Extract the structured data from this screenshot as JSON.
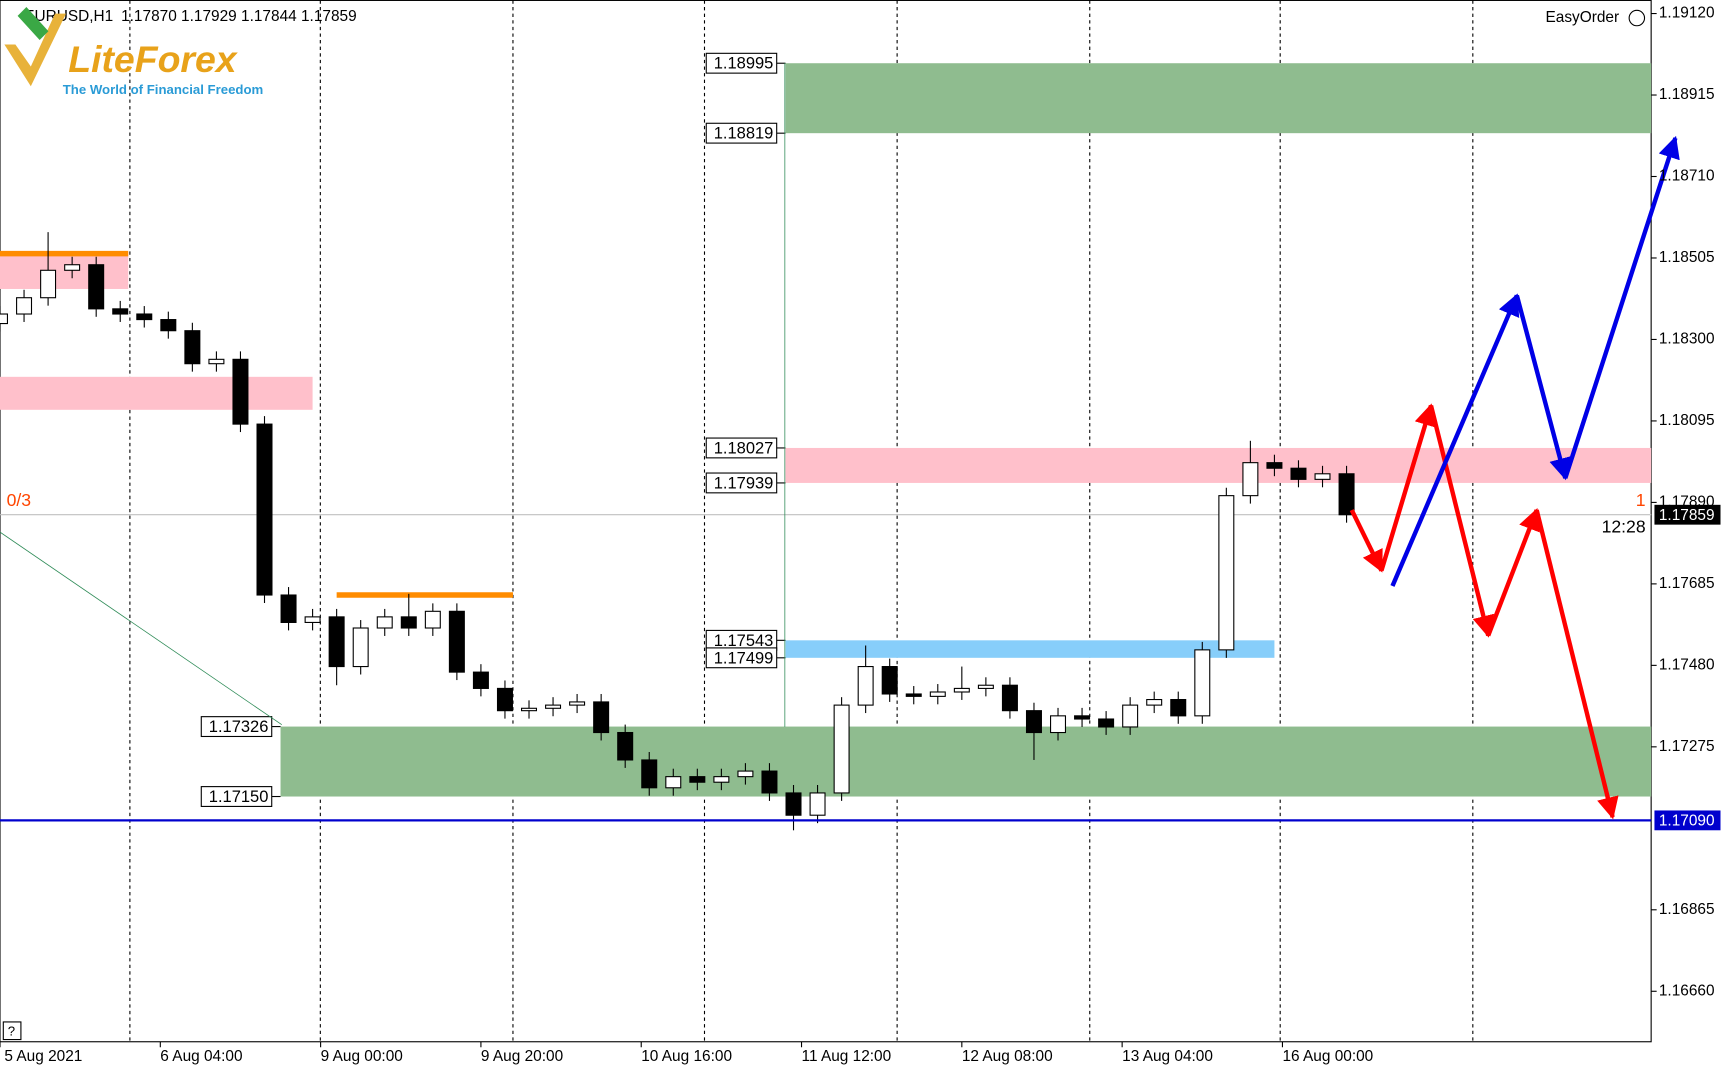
{
  "header": {
    "symbol": "EURUSD,H1",
    "ohlc": "1.17870 1.17929 1.17844 1.17859"
  },
  "logo": {
    "name": "LiteForex",
    "tagline": "The World of Financial Freedom"
  },
  "easy_order": "EasyOrder",
  "chart_data": {
    "type": "candlestick",
    "xlim": [
      0,
      206
    ],
    "ylim": [
      1.16533,
      1.19153
    ],
    "xticks": [
      {
        "value": 0,
        "label": "5 Aug 2021"
      },
      {
        "value": 20,
        "label": "6 Aug 04:00"
      },
      {
        "value": 40,
        "label": "9 Aug 00:00"
      },
      {
        "value": 60,
        "label": "9 Aug 20:00"
      },
      {
        "value": 80,
        "label": "10 Aug 16:00"
      },
      {
        "value": 100,
        "label": "11 Aug 12:00"
      },
      {
        "value": 120,
        "label": "12 Aug 08:00"
      },
      {
        "value": 140,
        "label": "13 Aug 04:00"
      },
      {
        "value": 160,
        "label": "16 Aug 00:00"
      }
    ],
    "yticks": [
      {
        "value": 1.1912,
        "label": "1.19120"
      },
      1.18915,
      {
        "value": 1.1871,
        "label": "1.18710"
      },
      1.18505,
      {
        "value": 1.183,
        "label": "1.18300"
      },
      1.18095,
      {
        "value": 1.1789,
        "label": "1.17890"
      },
      1.17685,
      {
        "value": 1.1748,
        "label": "1.17480"
      },
      1.17275,
      1.16865,
      {
        "value": 1.1666,
        "label": "1.16660"
      }
    ],
    "candles": {
      "up_color": "#ffffff",
      "down_color": "#000000",
      "x": [
        0,
        3,
        6,
        9,
        12,
        15,
        18,
        21,
        24,
        27,
        30,
        33,
        36,
        39,
        42,
        45,
        48,
        51,
        54,
        57,
        60,
        63,
        66,
        69,
        72,
        75,
        78,
        81,
        84,
        87,
        90,
        93,
        96,
        99,
        102,
        105,
        108,
        111,
        114,
        117,
        120,
        123,
        126,
        129,
        132,
        135,
        138,
        141,
        144,
        147,
        150,
        153,
        156,
        159,
        162,
        165,
        168
      ],
      "open": [
        1.1834,
        1.18364,
        1.18405,
        1.18474,
        1.18488,
        1.18377,
        1.18364,
        1.1835,
        1.18322,
        1.18239,
        1.1825,
        1.18087,
        1.17657,
        1.17588,
        1.17602,
        1.17477,
        1.17574,
        1.17602,
        1.17574,
        1.17616,
        1.17463,
        1.17422,
        1.17366,
        1.17372,
        1.1738,
        1.17388,
        1.17311,
        1.17242,
        1.17172,
        1.172,
        1.17186,
        1.172,
        1.17214,
        1.17159,
        1.17103,
        1.17159,
        1.1738,
        1.17477,
        1.17408,
        1.17402,
        1.17413,
        1.17422,
        1.1743,
        1.17366,
        1.17311,
        1.17353,
        1.17345,
        1.17325,
        1.1738,
        1.17394,
        1.17353,
        1.17519,
        1.17907,
        1.1799,
        1.17976,
        1.17948,
        1.17962
      ],
      "high": [
        1.18384,
        1.18425,
        1.1857,
        1.18508,
        1.18508,
        1.18397,
        1.18384,
        1.1837,
        1.18342,
        1.1827,
        1.1827,
        1.18107,
        1.17677,
        1.17622,
        1.17622,
        1.17594,
        1.17622,
        1.1766,
        1.17636,
        1.17636,
        1.17483,
        1.17442,
        1.17392,
        1.174,
        1.17408,
        1.17408,
        1.17331,
        1.17262,
        1.1722,
        1.1722,
        1.1722,
        1.17234,
        1.17234,
        1.17179,
        1.17179,
        1.174,
        1.1753,
        1.17497,
        1.17428,
        1.17433,
        1.17477,
        1.1745,
        1.1745,
        1.17386,
        1.17373,
        1.17373,
        1.17365,
        1.174,
        1.17414,
        1.17414,
        1.17539,
        1.17927,
        1.18045,
        1.1801,
        1.17996,
        1.17982,
        1.17982
      ],
      "low": [
        1.1832,
        1.18344,
        1.18385,
        1.18454,
        1.18357,
        1.18344,
        1.1833,
        1.18302,
        1.18219,
        1.18219,
        1.18067,
        1.17637,
        1.17568,
        1.17568,
        1.1743,
        1.17457,
        1.17554,
        1.17554,
        1.17554,
        1.17443,
        1.17402,
        1.17346,
        1.17346,
        1.17352,
        1.1736,
        1.17291,
        1.17222,
        1.17152,
        1.17152,
        1.17166,
        1.17166,
        1.1718,
        1.17139,
        1.17065,
        1.17083,
        1.17139,
        1.1736,
        1.17388,
        1.17382,
        1.17382,
        1.17393,
        1.17402,
        1.17346,
        1.17242,
        1.17291,
        1.17325,
        1.17305,
        1.17305,
        1.1736,
        1.17333,
        1.17333,
        1.17499,
        1.17887,
        1.17956,
        1.17928,
        1.17928,
        1.17839
      ],
      "close": [
        1.18364,
        1.18405,
        1.18474,
        1.18488,
        1.18377,
        1.18364,
        1.1835,
        1.18322,
        1.18239,
        1.1825,
        1.18087,
        1.17657,
        1.17588,
        1.17602,
        1.17477,
        1.17574,
        1.17602,
        1.17574,
        1.17616,
        1.17463,
        1.17422,
        1.17366,
        1.17372,
        1.1738,
        1.17388,
        1.17311,
        1.17242,
        1.17172,
        1.172,
        1.17186,
        1.172,
        1.17214,
        1.17159,
        1.17103,
        1.17159,
        1.1738,
        1.17477,
        1.17408,
        1.17402,
        1.17413,
        1.17422,
        1.1743,
        1.17366,
        1.17311,
        1.17353,
        1.17345,
        1.17325,
        1.1738,
        1.17394,
        1.17353,
        1.17519,
        1.17907,
        1.1799,
        1.17976,
        1.17948,
        1.17962,
        1.17859
      ]
    },
    "zones": [
      {
        "top": 1.18995,
        "bottom": 1.18819,
        "x": [
          98,
          206
        ],
        "color": "#8fbc8f",
        "show_labels": true
      },
      {
        "top": 1.18027,
        "bottom": 1.17939,
        "x": [
          98,
          206
        ],
        "color": "#ffc0cb",
        "show_labels": true
      },
      {
        "top": 1.17543,
        "bottom": 1.17499,
        "x": [
          98,
          159
        ],
        "color": "#87cefa",
        "show_labels": true
      },
      {
        "top": 1.17326,
        "bottom": {
          "value": 1.1715,
          "label": "1.17150"
        },
        "x": [
          35,
          206
        ],
        "color": "#8fbc8f",
        "show_labels": true
      },
      {
        "top": 1.18521,
        "bottom": 1.18427,
        "x": [
          0,
          16
        ],
        "color": "#ffc0cb",
        "show_labels": false
      },
      {
        "top": 1.18206,
        "bottom": 1.18123,
        "x": [
          0,
          39
        ],
        "color": "#ffc0cb",
        "show_labels": false
      }
    ],
    "levels": [
      {
        "value": 1.18516,
        "x": [
          0,
          16
        ],
        "color": "#ff8c00"
      },
      {
        "value": 1.17657,
        "x": [
          42,
          64
        ],
        "color": "#ff8c00"
      }
    ],
    "line": {
      "value": 1.1709,
      "label": "1.17090",
      "color": "#0000cd"
    },
    "current_price": 1.17859,
    "timer": "12:28",
    "counters": [
      "0/3",
      "1"
    ]
  }
}
